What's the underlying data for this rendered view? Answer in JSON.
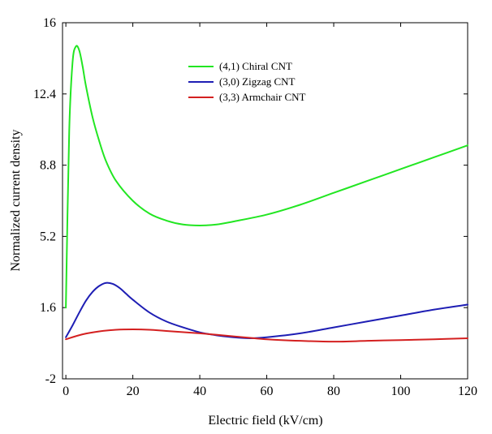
{
  "chart_data": {
    "type": "line",
    "title": "",
    "xlabel": "Electric field (kV/cm)",
    "ylabel": "Normalized current density",
    "xlim": [
      -1,
      120
    ],
    "ylim": [
      -2,
      16
    ],
    "xticks": [
      0,
      20,
      40,
      60,
      80,
      100,
      120
    ],
    "yticks": [
      -2,
      1.6,
      5.2,
      8.8,
      12.4,
      16
    ],
    "ytick_labels": [
      "-2",
      "1.6",
      "5.2",
      "8.8",
      "12.4",
      "16"
    ],
    "xtick_labels": [
      "0",
      "20",
      "40",
      "60",
      "80",
      "100",
      "120"
    ],
    "grid": false,
    "legend_position": "top-center",
    "series": [
      {
        "name": "(4,1) Chiral CNT",
        "color": "#22e622",
        "x": [
          0,
          1,
          2,
          3,
          4,
          5,
          6,
          8,
          10,
          12,
          15,
          20,
          25,
          30,
          35,
          40,
          45,
          50,
          60,
          70,
          80,
          90,
          100,
          110,
          120
        ],
        "y": [
          1.6,
          10.5,
          14.0,
          14.8,
          14.6,
          13.8,
          12.8,
          11.2,
          10.0,
          9.0,
          8.0,
          7.0,
          6.35,
          6.0,
          5.8,
          5.75,
          5.8,
          5.95,
          6.3,
          6.8,
          7.4,
          8.0,
          8.6,
          9.2,
          9.8
        ]
      },
      {
        "name": "(3,0) Zigzag CNT",
        "color": "#1e1eb4",
        "x": [
          0,
          2,
          4,
          6,
          8,
          10,
          12,
          14,
          16,
          18,
          20,
          25,
          30,
          35,
          40,
          45,
          50,
          55,
          60,
          70,
          80,
          90,
          100,
          110,
          120
        ],
        "y": [
          0.1,
          0.7,
          1.35,
          1.95,
          2.4,
          2.7,
          2.85,
          2.8,
          2.6,
          2.3,
          2.0,
          1.35,
          0.9,
          0.6,
          0.35,
          0.2,
          0.1,
          0.05,
          0.1,
          0.3,
          0.6,
          0.9,
          1.2,
          1.5,
          1.75
        ]
      },
      {
        "name": "(3,3) Armchair CNT",
        "color": "#d42020",
        "x": [
          0,
          5,
          10,
          15,
          20,
          25,
          30,
          40,
          50,
          60,
          70,
          80,
          90,
          100,
          110,
          120
        ],
        "y": [
          0.0,
          0.25,
          0.4,
          0.48,
          0.5,
          0.48,
          0.42,
          0.3,
          0.15,
          0.0,
          -0.08,
          -0.12,
          -0.08,
          -0.04,
          0.0,
          0.05
        ]
      }
    ]
  }
}
